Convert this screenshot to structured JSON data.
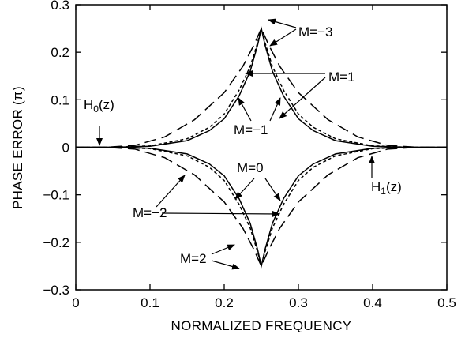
{
  "chart_data": {
    "type": "line",
    "title": "",
    "xlabel": "NORMALIZED FREQUENCY",
    "ylabel": "PHASE ERROR  (π)",
    "xlim": [
      0,
      0.5
    ],
    "ylim": [
      -0.3,
      0.3
    ],
    "x_ticks": [
      "0",
      "0.1",
      "0.2",
      "0.3",
      "0.4",
      "0.5"
    ],
    "y_ticks": [
      "0.3",
      "0.2",
      "0.1",
      "0",
      "−0.1",
      "−0.2",
      "−0.3"
    ],
    "grid": false,
    "legend": "none",
    "series": [
      {
        "name": "M=0",
        "style": "solid",
        "x": [
          0.05,
          0.1,
          0.15,
          0.18,
          0.2,
          0.22,
          0.235,
          0.245,
          0.25
        ],
        "y": [
          0,
          -0.002,
          -0.014,
          -0.035,
          -0.06,
          -0.108,
          -0.16,
          -0.215,
          -0.25
        ]
      },
      {
        "name": "M=−1",
        "style": "solid",
        "x": [
          0.05,
          0.1,
          0.15,
          0.18,
          0.2,
          0.22,
          0.235,
          0.245,
          0.25
        ],
        "y": [
          0,
          0.002,
          0.014,
          0.035,
          0.06,
          0.108,
          0.16,
          0.215,
          0.25
        ]
      },
      {
        "name": "M=1",
        "style": "dotted",
        "x": [
          0.05,
          0.1,
          0.15,
          0.18,
          0.2,
          0.22,
          0.235,
          0.245,
          0.25
        ],
        "y": [
          0,
          0.003,
          0.018,
          0.042,
          0.07,
          0.12,
          0.17,
          0.22,
          0.25
        ]
      },
      {
        "name": "M=−2",
        "style": "dotted",
        "x": [
          0.05,
          0.1,
          0.15,
          0.18,
          0.2,
          0.22,
          0.235,
          0.245,
          0.25
        ],
        "y": [
          0,
          -0.003,
          -0.018,
          -0.042,
          -0.07,
          -0.12,
          -0.17,
          -0.22,
          -0.25
        ]
      },
      {
        "name": "M=−3",
        "style": "dashed",
        "x": [
          0.04,
          0.08,
          0.12,
          0.16,
          0.2,
          0.225,
          0.24,
          0.25
        ],
        "y": [
          0,
          0.004,
          0.022,
          0.058,
          0.115,
          0.17,
          0.215,
          0.25
        ]
      },
      {
        "name": "M=2",
        "style": "dashed",
        "x": [
          0.04,
          0.08,
          0.12,
          0.16,
          0.2,
          0.225,
          0.24,
          0.25
        ],
        "y": [
          0,
          -0.004,
          -0.022,
          -0.058,
          -0.115,
          -0.17,
          -0.215,
          -0.25
        ]
      }
    ],
    "annotations": {
      "h0": {
        "main": "H",
        "sub": "0",
        "tail": "(z)",
        "x": 0.03,
        "y": 0
      },
      "h1": {
        "main": "H",
        "sub": "1",
        "tail": "(z)",
        "x": 0.46,
        "y": 0
      },
      "m_minus3": {
        "text": "M=−3"
      },
      "m1": {
        "text": "M=1"
      },
      "m_minus1": {
        "text": "M=−1"
      },
      "m0": {
        "text": "M=0"
      },
      "m_minus2": {
        "text": "M=−2"
      },
      "m2": {
        "text": "M=2"
      }
    }
  },
  "colors": {
    "line": "#000000",
    "background": "#ffffff"
  }
}
